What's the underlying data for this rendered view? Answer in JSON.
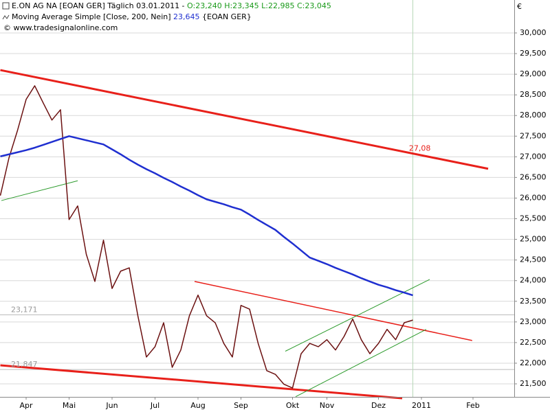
{
  "chart_data": {
    "type": "line",
    "header": {
      "instrument": "E.ON AG NA [EOAN GER]  Täglich 03.01.2011 -",
      "ohlc": "O:23,240 H:23,345 L:22,985 C:23,045",
      "indicator": "Moving Average Simple [Close, 200, Nein]",
      "indicator_value": "23,645",
      "indicator_symbol": "{EOAN GER}",
      "source": "© www.tradesignalonline.com"
    },
    "currency": "€",
    "categories": [
      null,
      null,
      null,
      "Apr",
      null,
      null,
      null,
      null,
      "Mai",
      null,
      null,
      null,
      null,
      "Jun",
      null,
      null,
      null,
      null,
      "Jul",
      null,
      null,
      null,
      null,
      "Aug",
      null,
      null,
      null,
      null,
      "Sep",
      null,
      null,
      null,
      null,
      null,
      "Okt",
      null,
      null,
      null,
      "Nov",
      null,
      null,
      null,
      null,
      null,
      "Dez",
      null,
      null,
      null,
      null,
      "2011",
      null,
      null,
      null,
      null,
      null,
      "Feb",
      null,
      null,
      null,
      null
    ],
    "series": [
      {
        "name": "E.ON AG NA",
        "color": "#6b1010",
        "values": [
          26060,
          26970,
          27640,
          28390,
          28720,
          28300,
          27890,
          28140,
          25480,
          25810,
          24640,
          23980,
          24980,
          23810,
          24230,
          24310,
          23150,
          22150,
          22400,
          22980,
          21900,
          22320,
          23150,
          23650,
          23150,
          22980,
          22480,
          22150,
          23400,
          23310,
          22480,
          21820,
          21730,
          21490,
          21400,
          22230,
          22480,
          22400,
          22570,
          22320,
          22650,
          23070,
          22570,
          22230,
          22480,
          22820,
          22570,
          22980,
          23045,
          null,
          null,
          null,
          null,
          null,
          null,
          null,
          null,
          null,
          null,
          null
        ]
      },
      {
        "name": "Moving Average Simple",
        "color": "#1f2fd0",
        "values": [
          27010,
          27060,
          27110,
          27160,
          27220,
          27290,
          27360,
          27430,
          27500,
          27450,
          27400,
          27350,
          27300,
          27180,
          27060,
          26930,
          26810,
          26700,
          26600,
          26490,
          26390,
          26280,
          26180,
          26070,
          25970,
          25910,
          25850,
          25780,
          25720,
          25600,
          25470,
          25350,
          25230,
          25060,
          24900,
          24730,
          24560,
          24480,
          24400,
          24310,
          24230,
          24150,
          24060,
          23980,
          23900,
          23840,
          23770,
          23710,
          23645,
          null,
          null,
          null,
          null,
          null,
          null,
          null,
          null,
          null,
          null,
          null
        ]
      }
    ],
    "trendlines": [
      {
        "color": "#e8201a",
        "width": 3,
        "from": [
          0,
          29100
        ],
        "to": [
          56.76,
          26710
        ],
        "label": "27,08"
      },
      {
        "color": "#e8201a",
        "width": 3,
        "from": [
          0,
          21950
        ],
        "to": [
          46.76,
          21150
        ]
      },
      {
        "color": "#e8201a",
        "width": 1.5,
        "from": [
          22.6,
          23980
        ],
        "to": [
          54.9,
          22550
        ]
      },
      {
        "color": "#2a9a2a",
        "width": 1,
        "from": [
          33.16,
          22290
        ],
        "to": [
          49.96,
          24030
        ]
      },
      {
        "color": "#2a9a2a",
        "width": 1,
        "from": [
          34.36,
          21190
        ],
        "to": [
          49.56,
          22820
        ]
      },
      {
        "color": "#2a9a2a",
        "width": 1,
        "from": [
          0.12,
          25940
        ],
        "to": [
          9.0,
          26420
        ]
      }
    ],
    "levels": [
      {
        "value": 23171,
        "label": "23,171"
      },
      {
        "value": 21847,
        "label": "21,847"
      }
    ],
    "ylim": [
      21184,
      30798
    ],
    "yticks": [
      {
        "value": 21500,
        "label": "21,500"
      },
      {
        "value": 22000,
        "label": "22,000"
      },
      {
        "value": 22500,
        "label": "22,500"
      },
      {
        "value": 23000,
        "label": "23,000"
      },
      {
        "value": 23500,
        "label": "23,500"
      },
      {
        "value": 24000,
        "label": "24,000"
      },
      {
        "value": 24500,
        "label": "24,500"
      },
      {
        "value": 25000,
        "label": "25,000"
      },
      {
        "value": 25500,
        "label": "25,500"
      },
      {
        "value": 26000,
        "label": "26,000"
      },
      {
        "value": 26500,
        "label": "26,500"
      },
      {
        "value": 27000,
        "label": "27,000"
      },
      {
        "value": 27500,
        "label": "27,500"
      },
      {
        "value": 28000,
        "label": "28,000"
      },
      {
        "value": 28500,
        "label": "28,500"
      },
      {
        "value": 29000,
        "label": "29,000"
      },
      {
        "value": 29500,
        "label": "29,500"
      },
      {
        "value": 30000,
        "label": "30,000"
      }
    ],
    "grid": true
  }
}
